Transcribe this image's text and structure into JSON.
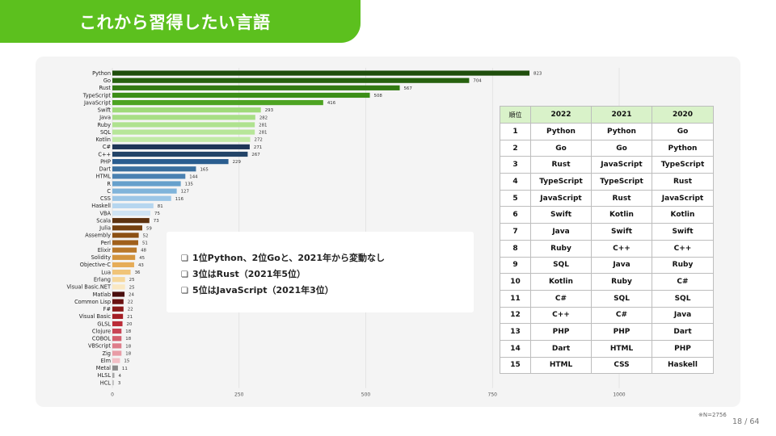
{
  "slide": {
    "title": "これから習得したい言語",
    "note": "※N=2756",
    "page": "18 / 64"
  },
  "callout": {
    "items": [
      "1位Python、2位Goと、2021年から変動なし",
      "3位はRust（2021年5位）",
      "5位はJavaScript（2021年3位）"
    ]
  },
  "table": {
    "headers": [
      "順位",
      "2022",
      "2021",
      "2020"
    ],
    "rows": [
      [
        "1",
        "Python",
        "Python",
        "Go"
      ],
      [
        "2",
        "Go",
        "Go",
        "Python"
      ],
      [
        "3",
        "Rust",
        "JavaScript",
        "TypeScript"
      ],
      [
        "4",
        "TypeScript",
        "TypeScript",
        "Rust"
      ],
      [
        "5",
        "JavaScript",
        "Rust",
        "JavaScript"
      ],
      [
        "6",
        "Swift",
        "Kotlin",
        "Kotlin"
      ],
      [
        "7",
        "Java",
        "Swift",
        "Swift"
      ],
      [
        "8",
        "Ruby",
        "C++",
        "C++"
      ],
      [
        "9",
        "SQL",
        "Java",
        "Ruby"
      ],
      [
        "10",
        "Kotlin",
        "Ruby",
        "C#"
      ],
      [
        "11",
        "C#",
        "SQL",
        "SQL"
      ],
      [
        "12",
        "C++",
        "C#",
        "Java"
      ],
      [
        "13",
        "PHP",
        "PHP",
        "Dart"
      ],
      [
        "14",
        "Dart",
        "HTML",
        "PHP"
      ],
      [
        "15",
        "HTML",
        "CSS",
        "Haskell"
      ]
    ]
  },
  "chart_data": {
    "type": "bar",
    "orientation": "horizontal",
    "title": "",
    "xlabel": "",
    "ylabel": "",
    "xlim": [
      0,
      1000
    ],
    "xticks": [
      0,
      250,
      500,
      750,
      1000
    ],
    "grid": true,
    "categories": [
      "Python",
      "Go",
      "Rust",
      "TypeScript",
      "JavaScript",
      "Swift",
      "Java",
      "Ruby",
      "SQL",
      "Kotlin",
      "C#",
      "C++",
      "PHP",
      "Dart",
      "HTML",
      "R",
      "C",
      "CSS",
      "Haskell",
      "VBA",
      "Scala",
      "Julia",
      "Assembly",
      "Perl",
      "Elixir",
      "Solidity",
      "Objective-C",
      "Lua",
      "Erlang",
      "Visual Basic.NET",
      "Matlab",
      "Common Lisp",
      "F#",
      "Visual Basic",
      "GLSL",
      "Clojure",
      "COBOL",
      "VBScript",
      "Zig",
      "Elm",
      "Metal",
      "HLSL",
      "HCL"
    ],
    "values": [
      823,
      704,
      567,
      508,
      416,
      293,
      282,
      281,
      281,
      272,
      271,
      267,
      229,
      165,
      144,
      135,
      127,
      116,
      81,
      75,
      73,
      59,
      52,
      51,
      48,
      45,
      43,
      36,
      25,
      25,
      24,
      22,
      22,
      21,
      20,
      18,
      18,
      18,
      18,
      15,
      11,
      4,
      3
    ],
    "colors": [
      "#1f4e0c",
      "#27620f",
      "#327a12",
      "#3c8e17",
      "#4da322",
      "#9fda7a",
      "#a7de85",
      "#afe28f",
      "#b7e699",
      "#c1eaa6",
      "#1d3557",
      "#234468",
      "#2a5d8f",
      "#3a6f9e",
      "#4a81b1",
      "#66a0cc",
      "#80b4da",
      "#9cc6e6",
      "#b6d6ef",
      "#cfe4f5",
      "#5c3210",
      "#74400f",
      "#8c5013",
      "#a0601c",
      "#b9782a",
      "#d3943d",
      "#e6ac58",
      "#f0c478",
      "#f6d89c",
      "#fae8c2",
      "#4a0e0e",
      "#6a1212",
      "#8b1a1a",
      "#a51f26",
      "#bb2c38",
      "#c94455",
      "#d4606f",
      "#de7d8a",
      "#e89ca6",
      "#f2bfc6",
      "#8a8a8a",
      "#a6a6a6",
      "#c0c0c0"
    ]
  }
}
